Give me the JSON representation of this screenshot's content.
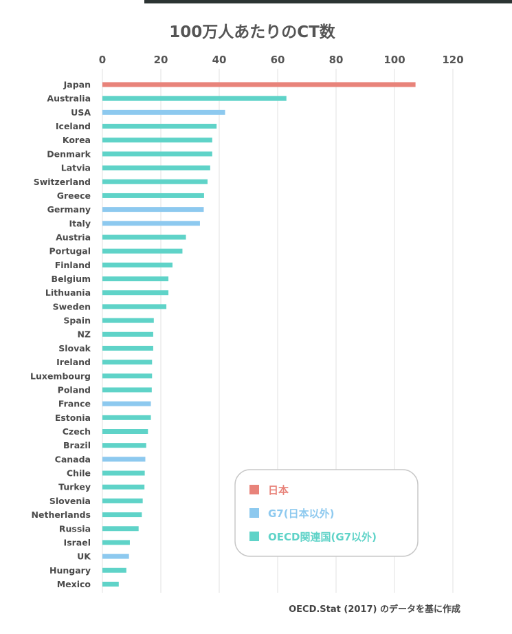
{
  "chart_data": {
    "type": "bar",
    "orientation": "horizontal",
    "title": "100万人あたりのCT数",
    "xlim": [
      0,
      120
    ],
    "xticks": [
      0,
      20,
      40,
      60,
      80,
      100,
      120
    ],
    "grid": true,
    "source_note": "OECD.Stat (2017) のデータを基に作成",
    "legend": {
      "placement": "bottom-right",
      "entries": [
        {
          "label": "日本",
          "color": "#e8837a"
        },
        {
          "label": "G7(日本以外)",
          "color": "#8dc9ef"
        },
        {
          "label": "OECD関連国(G7以外)",
          "color": "#5fd3c8"
        }
      ]
    },
    "categories": [
      "Japan",
      "Australia",
      "USA",
      "Iceland",
      "Korea",
      "Denmark",
      "Latvia",
      "Switzerland",
      "Greece",
      "Germany",
      "Italy",
      "Austria",
      "Portugal",
      "Finland",
      "Belgium",
      "Lithuania",
      "Sweden",
      "Spain",
      "NZ",
      "Slovak",
      "Ireland",
      "Luxembourg",
      "Poland",
      "France",
      "Estonia",
      "Czech",
      "Brazil",
      "Canada",
      "Chile",
      "Turkey",
      "Slovenia",
      "Netherlands",
      "Russia",
      "Israel",
      "UK",
      "Hungary",
      "Mexico"
    ],
    "values": [
      107.2,
      63.0,
      42.0,
      39.1,
      37.6,
      37.6,
      36.9,
      36.0,
      34.8,
      34.7,
      33.4,
      28.6,
      27.4,
      24.0,
      22.6,
      22.6,
      21.9,
      17.6,
      17.4,
      17.4,
      17.0,
      17.0,
      16.9,
      16.6,
      16.6,
      15.6,
      15.0,
      14.7,
      14.5,
      14.4,
      13.8,
      13.5,
      12.4,
      9.4,
      9.1,
      8.2,
      5.6
    ],
    "groups": [
      "japan",
      "oecd",
      "g7",
      "oecd",
      "oecd",
      "oecd",
      "oecd",
      "oecd",
      "oecd",
      "g7",
      "g7",
      "oecd",
      "oecd",
      "oecd",
      "oecd",
      "oecd",
      "oecd",
      "oecd",
      "oecd",
      "oecd",
      "oecd",
      "oecd",
      "oecd",
      "g7",
      "oecd",
      "oecd",
      "oecd",
      "g7",
      "oecd",
      "oecd",
      "oecd",
      "oecd",
      "oecd",
      "oecd",
      "g7",
      "oecd",
      "oecd"
    ],
    "group_colors": {
      "japan": "#e8837a",
      "g7": "#8dc9ef",
      "oecd": "#5fd3c8"
    }
  }
}
